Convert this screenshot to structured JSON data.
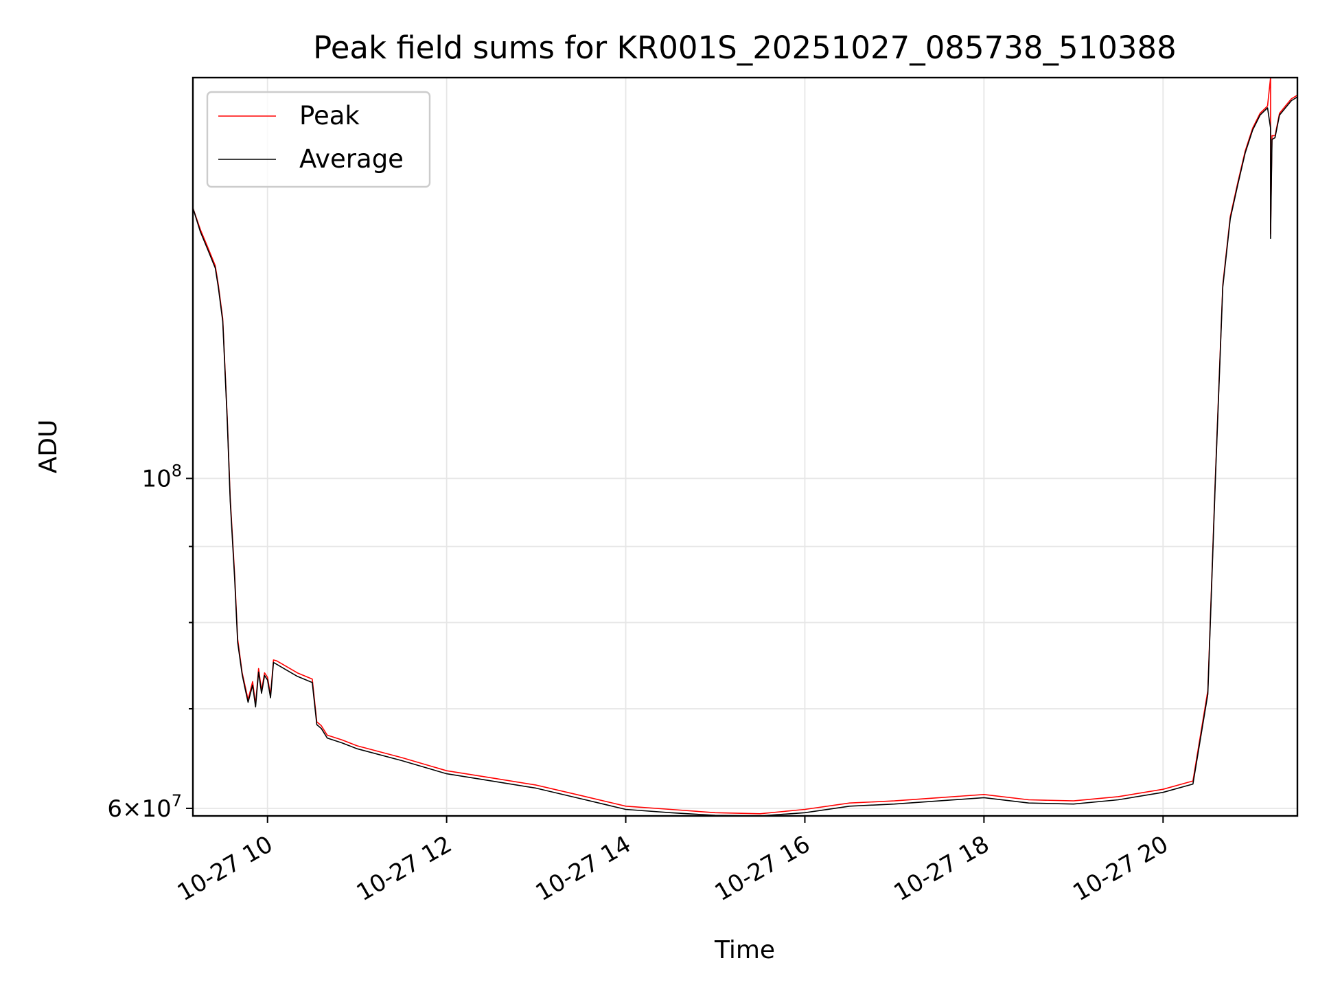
{
  "chart_data": {
    "type": "line",
    "title": "Peak field sums for KR001S_20251027_085738_510388",
    "xlabel": "Time",
    "ylabel": "ADU",
    "yscale": "log",
    "xlim": [
      "10-27 09:10",
      "10-27 21:30"
    ],
    "ylim": [
      59300000,
      186000000
    ],
    "grid": true,
    "legend_position": "upper-left",
    "x_ticks": [
      {
        "time": "10-27 10:00",
        "label": "10-27 10"
      },
      {
        "time": "10-27 12:00",
        "label": "10-27 12"
      },
      {
        "time": "10-27 14:00",
        "label": "10-27 14"
      },
      {
        "time": "10-27 16:00",
        "label": "10-27 16"
      },
      {
        "time": "10-27 18:00",
        "label": "10-27 18"
      },
      {
        "time": "10-27 20:00",
        "label": "10-27 20"
      }
    ],
    "y_major_ticks": [
      {
        "value": 60000000,
        "base": "6",
        "exp": "7",
        "label_kind": "mantissa"
      },
      {
        "value": 100000000,
        "base": "10",
        "exp": "8",
        "label_kind": "power"
      }
    ],
    "y_minor_ticks": [
      70000000,
      80000000,
      90000000
    ],
    "series": [
      {
        "name": "Peak",
        "color": "#ff0000",
        "x": [
          "10-27 09:10",
          "10-27 09:15",
          "10-27 09:20",
          "10-27 09:25",
          "10-27 09:27",
          "10-27 09:30",
          "10-27 09:33",
          "10-27 09:35",
          "10-27 09:38",
          "10-27 09:40",
          "10-27 09:43",
          "10-27 09:45",
          "10-27 09:47",
          "10-27 09:50",
          "10-27 09:52",
          "10-27 09:54",
          "10-27 09:56",
          "10-27 09:58",
          "10-27 10:00",
          "10-27 10:02",
          "10-27 10:04",
          "10-27 10:06",
          "10-27 10:10",
          "10-27 10:20",
          "10-27 10:30",
          "10-27 10:33",
          "10-27 10:36",
          "10-27 10:40",
          "10-27 10:50",
          "10-27 11:00",
          "10-27 11:30",
          "10-27 12:00",
          "10-27 12:30",
          "10-27 13:00",
          "10-27 13:30",
          "10-27 14:00",
          "10-27 14:30",
          "10-27 15:00",
          "10-27 15:30",
          "10-27 16:00",
          "10-27 16:30",
          "10-27 17:00",
          "10-27 17:30",
          "10-27 18:00",
          "10-27 18:30",
          "10-27 19:00",
          "10-27 19:30",
          "10-27 20:00",
          "10-27 20:20",
          "10-27 20:30",
          "10-27 20:35",
          "10-27 20:40",
          "10-27 20:45",
          "10-27 20:50",
          "10-27 20:55",
          "10-27 21:00",
          "10-27 21:05",
          "10-27 21:10",
          "10-27 21:12",
          "10-27 21:12",
          "10-27 21:13",
          "10-27 21:15",
          "10-27 21:18",
          "10-27 21:22",
          "10-27 21:26",
          "10-27 21:30"
        ],
        "y": [
          152000000,
          147000000,
          143000000,
          139000000,
          135000000,
          128000000,
          110000000,
          97000000,
          86000000,
          78000000,
          74000000,
          72500000,
          71000000,
          73000000,
          70500000,
          74500000,
          72000000,
          74000000,
          73500000,
          71500000,
          75500000,
          75400000,
          75000000,
          74000000,
          73300000,
          68600000,
          68200000,
          67200000,
          66700000,
          66100000,
          64900000,
          63600000,
          62900000,
          62200000,
          61200000,
          60200000,
          59900000,
          59600000,
          59500000,
          59900000,
          60500000,
          60700000,
          61000000,
          61300000,
          60800000,
          60700000,
          61100000,
          61800000,
          62600000,
          72000000,
          100000000,
          135000000,
          150000000,
          158000000,
          166000000,
          172000000,
          176000000,
          178000000,
          186000000,
          146000000,
          170000000,
          170000000,
          176000000,
          178000000,
          180000000,
          181000000
        ]
      },
      {
        "name": "Average",
        "color": "#000000",
        "x": [
          "10-27 09:10",
          "10-27 09:15",
          "10-27 09:20",
          "10-27 09:25",
          "10-27 09:27",
          "10-27 09:30",
          "10-27 09:33",
          "10-27 09:35",
          "10-27 09:38",
          "10-27 09:40",
          "10-27 09:43",
          "10-27 09:45",
          "10-27 09:47",
          "10-27 09:50",
          "10-27 09:52",
          "10-27 09:54",
          "10-27 09:56",
          "10-27 09:58",
          "10-27 10:00",
          "10-27 10:02",
          "10-27 10:04",
          "10-27 10:06",
          "10-27 10:10",
          "10-27 10:20",
          "10-27 10:30",
          "10-27 10:33",
          "10-27 10:36",
          "10-27 10:40",
          "10-27 10:50",
          "10-27 11:00",
          "10-27 11:30",
          "10-27 12:00",
          "10-27 12:30",
          "10-27 13:00",
          "10-27 13:30",
          "10-27 14:00",
          "10-27 14:30",
          "10-27 15:00",
          "10-27 15:30",
          "10-27 16:00",
          "10-27 16:30",
          "10-27 17:00",
          "10-27 17:30",
          "10-27 18:00",
          "10-27 18:30",
          "10-27 19:00",
          "10-27 19:30",
          "10-27 20:00",
          "10-27 20:20",
          "10-27 20:30",
          "10-27 20:35",
          "10-27 20:40",
          "10-27 20:45",
          "10-27 20:50",
          "10-27 20:55",
          "10-27 21:00",
          "10-27 21:05",
          "10-27 21:10",
          "10-27 21:12",
          "10-27 21:12",
          "10-27 21:13",
          "10-27 21:15",
          "10-27 21:18",
          "10-27 21:22",
          "10-27 21:26",
          "10-27 21:30"
        ],
        "y": [
          152000000,
          146500000,
          142500000,
          138500000,
          134500000,
          127500000,
          109500000,
          96500000,
          85500000,
          77600000,
          73800000,
          72200000,
          70700000,
          72600000,
          70200000,
          74100000,
          71700000,
          73700000,
          73200000,
          71200000,
          75200000,
          75000000,
          74600000,
          73600000,
          72900000,
          68300000,
          67900000,
          66900000,
          66400000,
          65800000,
          64600000,
          63300000,
          62600000,
          61900000,
          60900000,
          59900000,
          59600000,
          59350000,
          59300000,
          59600000,
          60200000,
          60400000,
          60700000,
          61000000,
          60500000,
          60400000,
          60800000,
          61500000,
          62300000,
          71600000,
          99500000,
          134500000,
          149500000,
          157500000,
          165500000,
          171500000,
          175500000,
          177500000,
          172000000,
          145000000,
          169000000,
          169500000,
          175500000,
          177500000,
          179500000,
          180500000
        ]
      }
    ]
  }
}
